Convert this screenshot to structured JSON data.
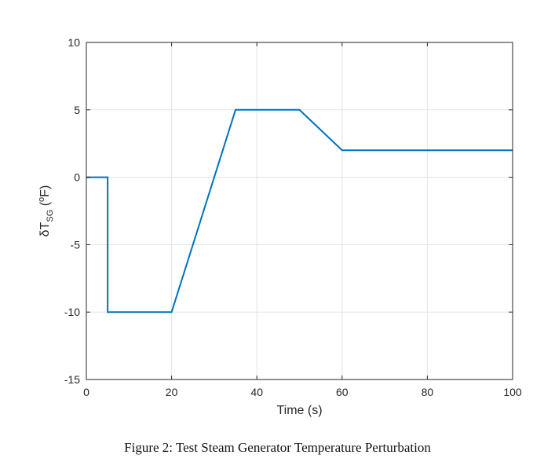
{
  "chart_data": {
    "type": "line",
    "title": "",
    "xlabel": "Time (s)",
    "ylabel": {
      "prefix": "δT",
      "subscript": "SG",
      "unit_open": " (",
      "unit_sup": "o",
      "unit_rest": "F)"
    },
    "xlim": [
      0,
      100
    ],
    "ylim": [
      -15,
      10
    ],
    "xticks": [
      0,
      20,
      40,
      60,
      80,
      100
    ],
    "yticks": [
      -15,
      -10,
      -5,
      0,
      5,
      10
    ],
    "grid": true,
    "series": [
      {
        "name": "dT_SG",
        "color": "#0072BD",
        "x": [
          0,
          5,
          5,
          20,
          35,
          50,
          60,
          100
        ],
        "y": [
          0,
          0,
          -10,
          -10,
          5,
          5,
          2,
          2
        ]
      }
    ]
  },
  "caption": "Figure 2: Test Steam Generator Temperature Perturbation"
}
